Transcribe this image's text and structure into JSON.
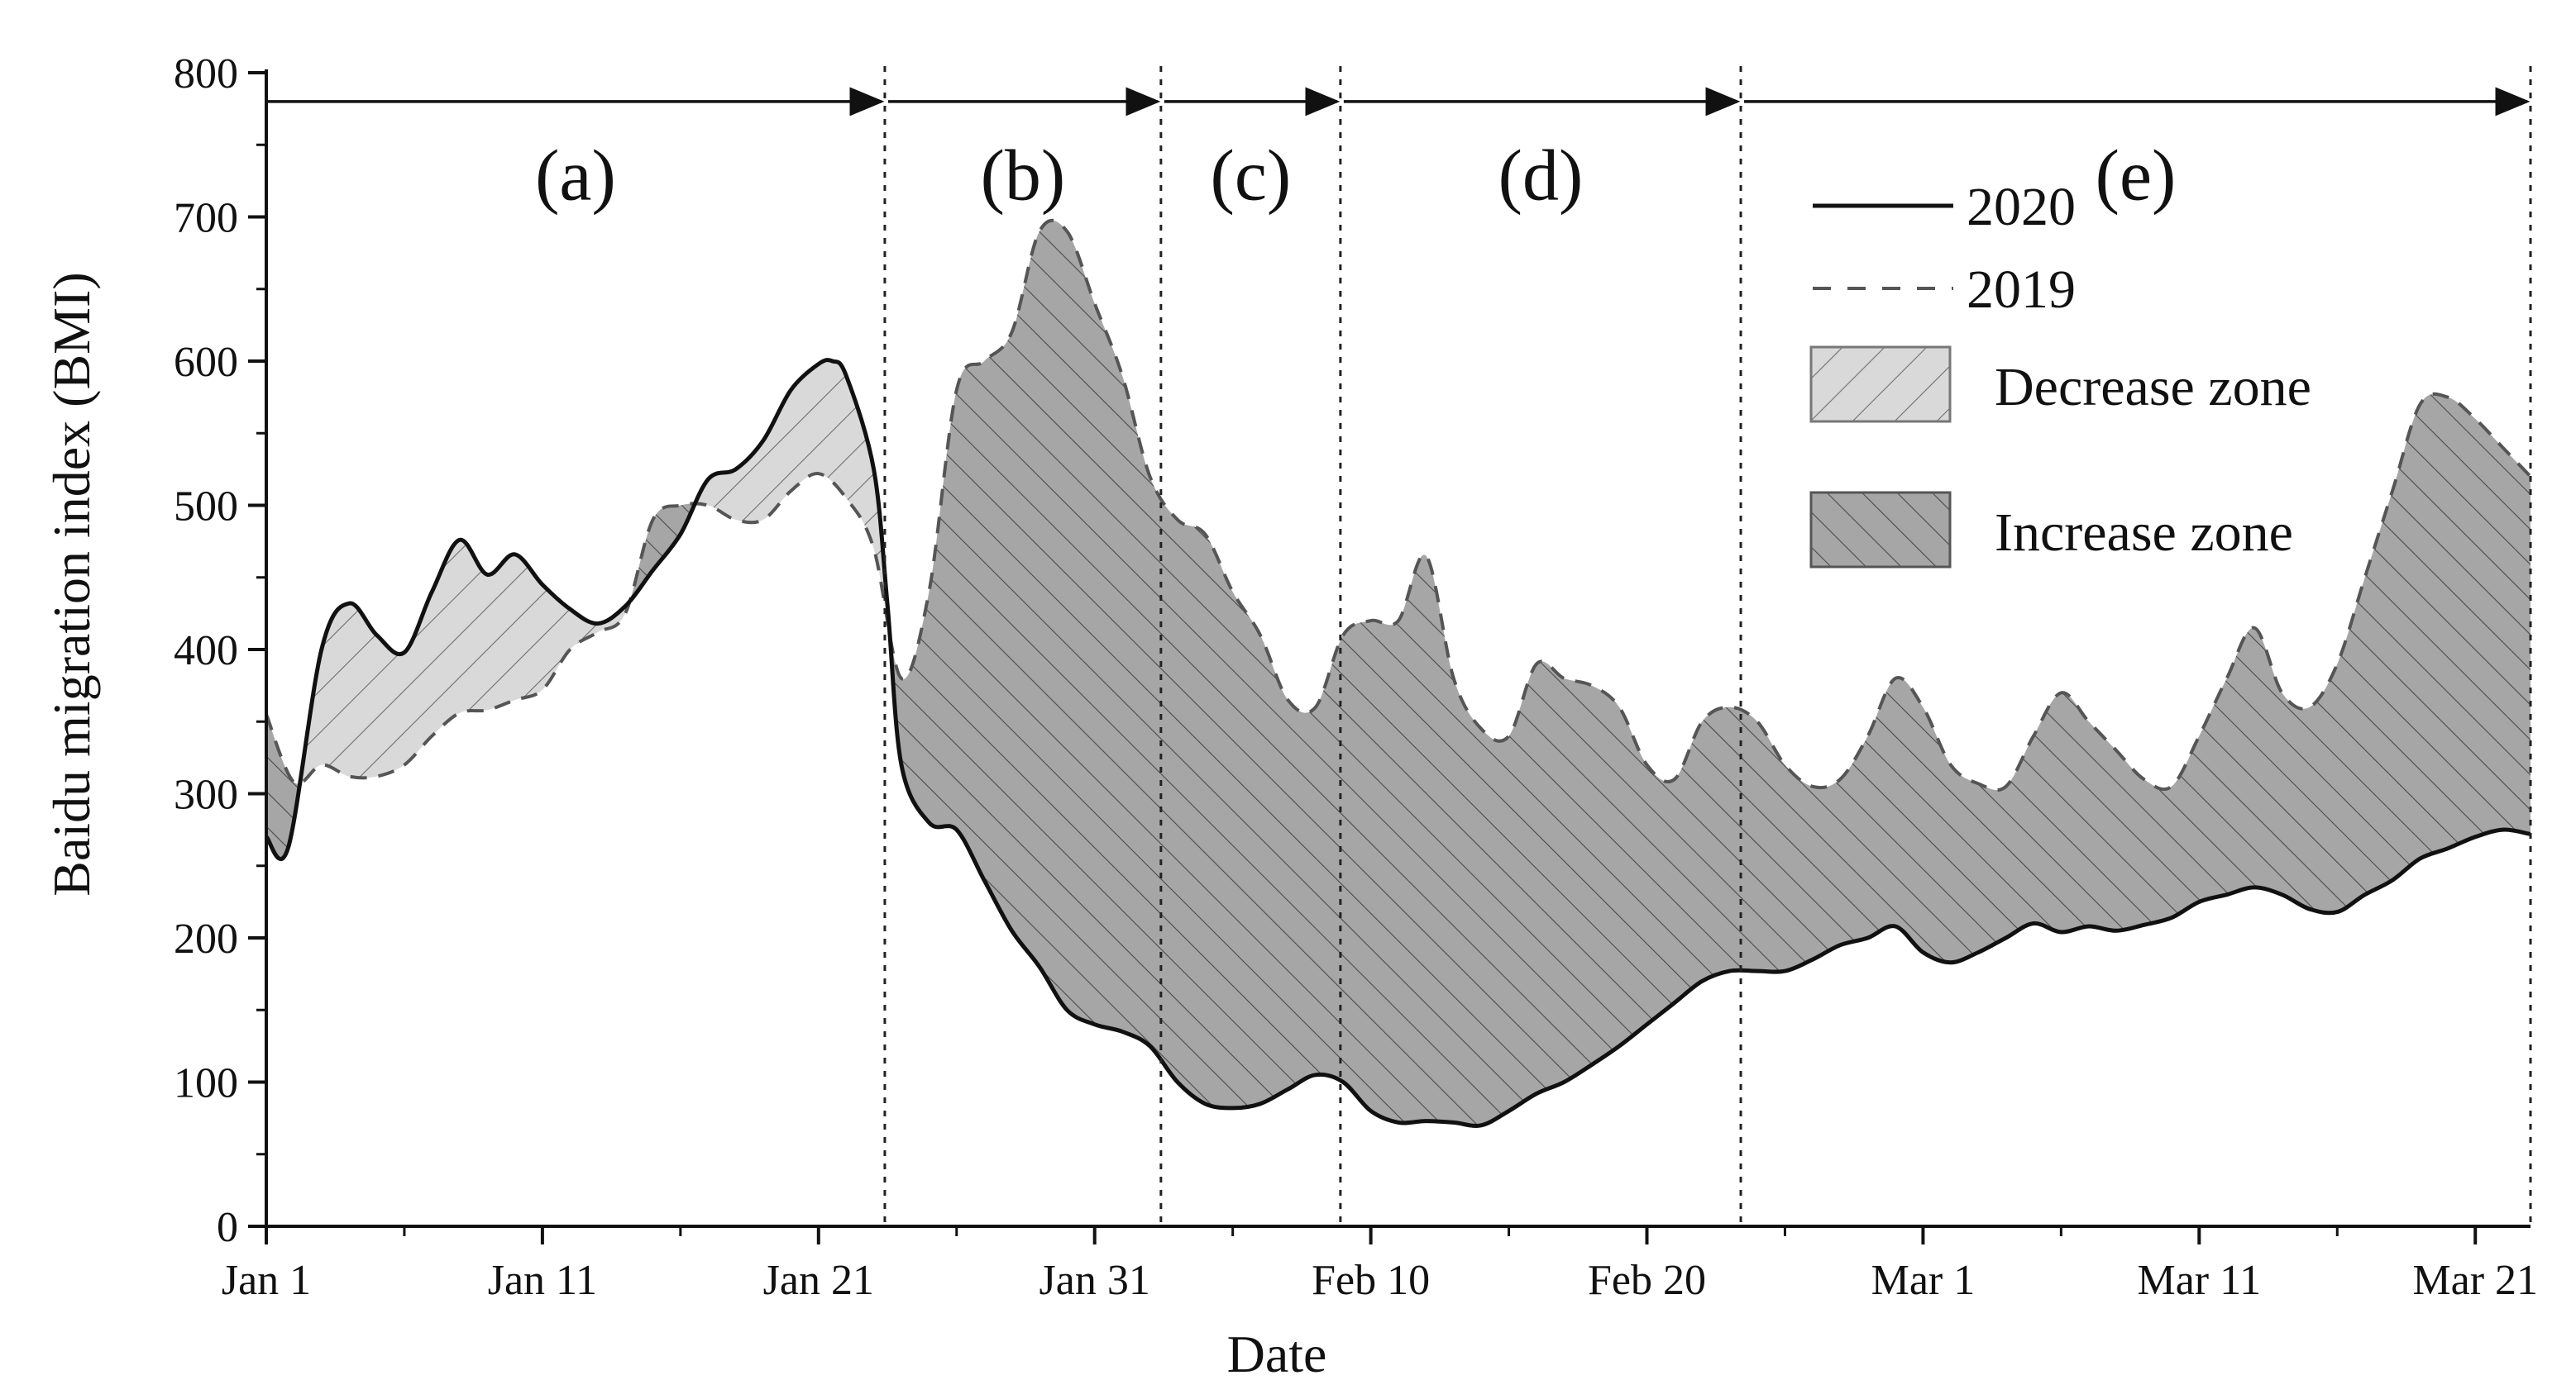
{
  "chart_data": {
    "type": "area",
    "title": "",
    "xlabel": "Date",
    "ylabel": "Baidu migration index (BMI)",
    "ylim": [
      0,
      800
    ],
    "yticks": [
      0,
      100,
      200,
      300,
      400,
      500,
      600,
      700,
      800
    ],
    "xlim": [
      1,
      83
    ],
    "xticks": [
      {
        "day": 1,
        "label": "Jan 1"
      },
      {
        "day": 11,
        "label": "Jan 11"
      },
      {
        "day": 21,
        "label": "Jan 21"
      },
      {
        "day": 31,
        "label": "Jan 31"
      },
      {
        "day": 41,
        "label": "Feb 10"
      },
      {
        "day": 51,
        "label": "Feb 20"
      },
      {
        "day": 61,
        "label": "Mar 1"
      },
      {
        "day": 71,
        "label": "Mar 11"
      },
      {
        "day": 81,
        "label": "Mar 21"
      }
    ],
    "x_unit": "day of year",
    "grid": false,
    "legend_position": "top-right",
    "phases": [
      {
        "label": "(a)",
        "start": 1,
        "end": 23.4
      },
      {
        "label": "(b)",
        "start": 23.4,
        "end": 33.4
      },
      {
        "label": "(c)",
        "start": 33.4,
        "end": 39.9
      },
      {
        "label": "(d)",
        "start": 39.9,
        "end": 54.4
      },
      {
        "label": "(e)",
        "start": 54.4,
        "end": 83
      }
    ],
    "series": [
      {
        "name": "2020",
        "style": "solid",
        "color": "#111111",
        "x": [
          1,
          1.8,
          3,
          4,
          5,
          6,
          7,
          8,
          9,
          10,
          11,
          12,
          13,
          14,
          15,
          16,
          17,
          18,
          19,
          20,
          21,
          21.5,
          22,
          23,
          23.5,
          24,
          25,
          26,
          27,
          28,
          29,
          30,
          31,
          32,
          33,
          34,
          35,
          36,
          37,
          38,
          39,
          40,
          41,
          42,
          43,
          44,
          45,
          46,
          47,
          48,
          49,
          50,
          51,
          52,
          53,
          54,
          55,
          56,
          57,
          58,
          59,
          60,
          61,
          62,
          63,
          64,
          65,
          66,
          67,
          68,
          69,
          70,
          71,
          72,
          73,
          74,
          75,
          76,
          77,
          78,
          79,
          80,
          81,
          82,
          83
        ],
        "values": [
          270,
          263,
          400,
          432,
          410,
          398,
          440,
          476,
          452,
          466,
          445,
          428,
          418,
          430,
          455,
          480,
          518,
          525,
          545,
          580,
          598,
          600,
          590,
          525,
          430,
          320,
          280,
          275,
          240,
          205,
          180,
          150,
          140,
          135,
          125,
          100,
          85,
          82,
          85,
          95,
          105,
          100,
          80,
          72,
          73,
          72,
          70,
          80,
          92,
          100,
          112,
          125,
          140,
          155,
          170,
          177,
          177,
          177,
          185,
          195,
          200,
          208,
          190,
          183,
          190,
          200,
          210,
          204,
          208,
          205,
          209,
          214,
          225,
          230,
          235,
          230,
          220,
          218,
          230,
          240,
          255,
          262,
          270,
          275,
          272
        ]
      },
      {
        "name": "2019",
        "style": "dashed",
        "color": "#555555",
        "x": [
          1,
          2,
          3,
          4,
          5,
          6,
          7,
          8,
          9,
          10,
          11,
          12,
          13,
          14,
          15,
          16,
          17,
          18,
          19,
          20,
          21,
          22,
          23,
          24,
          25,
          26,
          27,
          28,
          29,
          30,
          31,
          32,
          33,
          34,
          35,
          36,
          37,
          38,
          39,
          40,
          41,
          42,
          43,
          44,
          45,
          46,
          47,
          48,
          49,
          50,
          51,
          52,
          53,
          54,
          55,
          56,
          57,
          58,
          59,
          60,
          61,
          62,
          63,
          64,
          65,
          66,
          67,
          68,
          69,
          70,
          71,
          72,
          73,
          74,
          75,
          76,
          77,
          78,
          79,
          80,
          81,
          82,
          83
        ],
        "values": [
          355,
          308,
          320,
          312,
          312,
          320,
          340,
          356,
          358,
          365,
          372,
          400,
          412,
          425,
          490,
          500,
          500,
          490,
          490,
          510,
          522,
          505,
          470,
          380,
          440,
          580,
          600,
          620,
          690,
          690,
          640,
          590,
          520,
          490,
          480,
          440,
          410,
          365,
          360,
          410,
          420,
          420,
          465,
          380,
          345,
          340,
          390,
          380,
          375,
          360,
          320,
          310,
          350,
          360,
          350,
          320,
          305,
          310,
          340,
          380,
          360,
          320,
          307,
          305,
          340,
          370,
          350,
          330,
          310,
          305,
          340,
          380,
          415,
          370,
          360,
          390,
          450,
          510,
          570,
          575,
          560,
          540,
          520
        ]
      }
    ],
    "legend": {
      "line_2020": "2020",
      "line_2019": "2019",
      "decrease": "Decrease zone",
      "increase": "Increase zone"
    },
    "colors": {
      "decrease_fill": "#d9d9d9",
      "increase_fill": "#a6a6a6",
      "hatch": "#6e6e6e",
      "axis": "#111111"
    }
  }
}
